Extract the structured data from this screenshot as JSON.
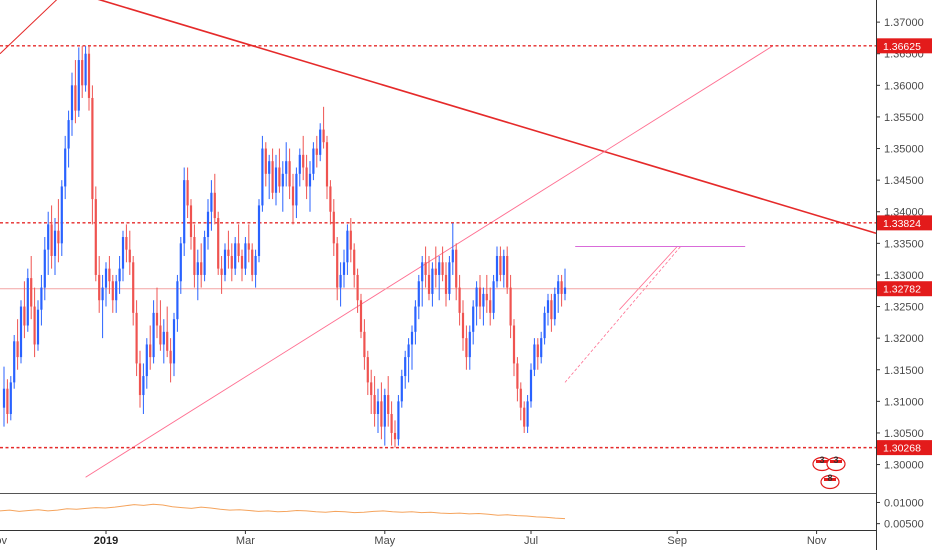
{
  "chart_data": {
    "type": "candlestick",
    "instrument_note": "",
    "colors": {
      "up": "#2962ff",
      "down": "#ef5350",
      "resistance_line": "#e52a2a",
      "trendline": "#e52a2a",
      "channel": "#ff6f91",
      "price_line": "#f4a3a3",
      "oscillator": "#f5a45d",
      "axis_text": "#4a4a4a",
      "badge": "#e31b1b"
    },
    "y_axis": {
      "range": [
        1.2955,
        1.3735
      ],
      "ticks": [
        "1.37000",
        "1.36500",
        "1.36000",
        "1.35500",
        "1.35000",
        "1.34500",
        "1.34000",
        "1.33500",
        "1.33000",
        "1.32500",
        "1.32000",
        "1.31500",
        "1.31000",
        "1.30500",
        "1.30000"
      ]
    },
    "price_levels": [
      {
        "value": 1.36625,
        "label": "1.36625",
        "style": "dashed"
      },
      {
        "value": 1.33824,
        "label": "1.33824",
        "style": "dashed"
      },
      {
        "value": 1.30268,
        "label": "1.30268",
        "style": "dashed"
      },
      {
        "value": 1.32782,
        "label": "1.32782",
        "style": "current"
      }
    ],
    "x_axis": {
      "labels": [
        {
          "label": "Nov",
          "bar": -2,
          "bold": false
        },
        {
          "label": "2019",
          "bar": 30,
          "bold": true
        },
        {
          "label": "Mar",
          "bar": 71,
          "bold": false
        },
        {
          "label": "May",
          "bar": 112,
          "bold": false
        },
        {
          "label": "Jul",
          "bar": 155,
          "bold": false
        },
        {
          "label": "Sep",
          "bar": 198,
          "bold": false
        },
        {
          "label": "Nov",
          "bar": 239,
          "bold": false
        }
      ]
    },
    "candles": [
      [
        1.309,
        1.3155,
        1.306,
        1.312
      ],
      [
        1.312,
        1.3135,
        1.3065,
        1.308
      ],
      [
        1.308,
        1.314,
        1.307,
        1.313
      ],
      [
        1.313,
        1.3205,
        1.312,
        1.3195
      ],
      [
        1.3195,
        1.323,
        1.315,
        1.317
      ],
      [
        1.317,
        1.326,
        1.316,
        1.325
      ],
      [
        1.325,
        1.329,
        1.32,
        1.322
      ],
      [
        1.322,
        1.331,
        1.321,
        1.3295
      ],
      [
        1.3295,
        1.333,
        1.323,
        1.325
      ],
      [
        1.325,
        1.328,
        1.317,
        1.319
      ],
      [
        1.319,
        1.326,
        1.318,
        1.3245
      ],
      [
        1.3245,
        1.33,
        1.322,
        1.328
      ],
      [
        1.328,
        1.336,
        1.326,
        1.334
      ],
      [
        1.334,
        1.34,
        1.33,
        1.338
      ],
      [
        1.338,
        1.341,
        1.331,
        1.333
      ],
      [
        1.333,
        1.339,
        1.33,
        1.337
      ],
      [
        1.337,
        1.342,
        1.332,
        1.335
      ],
      [
        1.335,
        1.345,
        1.333,
        1.344
      ],
      [
        1.344,
        1.352,
        1.342,
        1.35
      ],
      [
        1.35,
        1.356,
        1.347,
        1.3545
      ],
      [
        1.3545,
        1.362,
        1.352,
        1.36
      ],
      [
        1.36,
        1.364,
        1.354,
        1.356
      ],
      [
        1.356,
        1.366,
        1.355,
        1.364
      ],
      [
        1.364,
        1.3662,
        1.358,
        1.36
      ],
      [
        1.36,
        1.3662,
        1.359,
        1.365
      ],
      [
        1.365,
        1.3662,
        1.356,
        1.358
      ],
      [
        1.358,
        1.36,
        1.338,
        1.342
      ],
      [
        1.342,
        1.344,
        1.329,
        1.33
      ],
      [
        1.33,
        1.333,
        1.324,
        1.326
      ],
      [
        1.326,
        1.33,
        1.32,
        1.328
      ],
      [
        1.328,
        1.332,
        1.325,
        1.331
      ],
      [
        1.331,
        1.333,
        1.327,
        1.329
      ],
      [
        1.329,
        1.33,
        1.324,
        1.326
      ],
      [
        1.326,
        1.33,
        1.324,
        1.329
      ],
      [
        1.329,
        1.333,
        1.327,
        1.331
      ],
      [
        1.331,
        1.337,
        1.329,
        1.336
      ],
      [
        1.336,
        1.338,
        1.332,
        1.334
      ],
      [
        1.334,
        1.337,
        1.33,
        1.332
      ],
      [
        1.332,
        1.333,
        1.322,
        1.324
      ],
      [
        1.324,
        1.326,
        1.314,
        1.316
      ],
      [
        1.316,
        1.318,
        1.309,
        1.311
      ],
      [
        1.311,
        1.316,
        1.308,
        1.314
      ],
      [
        1.314,
        1.32,
        1.312,
        1.319
      ],
      [
        1.319,
        1.322,
        1.315,
        1.317
      ],
      [
        1.317,
        1.326,
        1.316,
        1.324
      ],
      [
        1.324,
        1.328,
        1.32,
        1.322
      ],
      [
        1.322,
        1.326,
        1.318,
        1.319
      ],
      [
        1.319,
        1.323,
        1.316,
        1.321
      ],
      [
        1.321,
        1.325,
        1.317,
        1.318
      ],
      [
        1.318,
        1.32,
        1.313,
        1.316
      ],
      [
        1.316,
        1.324,
        1.314,
        1.323
      ],
      [
        1.323,
        1.33,
        1.321,
        1.329
      ],
      [
        1.329,
        1.336,
        1.327,
        1.335
      ],
      [
        1.335,
        1.347,
        1.333,
        1.345
      ],
      [
        1.345,
        1.347,
        1.339,
        1.341
      ],
      [
        1.341,
        1.342,
        1.334,
        1.336
      ],
      [
        1.336,
        1.338,
        1.328,
        1.33
      ],
      [
        1.33,
        1.334,
        1.326,
        1.332
      ],
      [
        1.332,
        1.335,
        1.328,
        1.33
      ],
      [
        1.33,
        1.337,
        1.329,
        1.336
      ],
      [
        1.336,
        1.342,
        1.334,
        1.34
      ],
      [
        1.34,
        1.345,
        1.337,
        1.343
      ],
      [
        1.343,
        1.346,
        1.338,
        1.339
      ],
      [
        1.339,
        1.34,
        1.33,
        1.331
      ],
      [
        1.331,
        1.333,
        1.327,
        1.33
      ],
      [
        1.33,
        1.335,
        1.329,
        1.334
      ],
      [
        1.334,
        1.337,
        1.331,
        1.333
      ],
      [
        1.333,
        1.335,
        1.329,
        1.331
      ],
      [
        1.331,
        1.336,
        1.33,
        1.335
      ],
      [
        1.335,
        1.338,
        1.332,
        1.333
      ],
      [
        1.333,
        1.334,
        1.329,
        1.331
      ],
      [
        1.331,
        1.336,
        1.33,
        1.335
      ],
      [
        1.335,
        1.338,
        1.332,
        1.334
      ],
      [
        1.334,
        1.335,
        1.329,
        1.33
      ],
      [
        1.33,
        1.334,
        1.328,
        1.333
      ],
      [
        1.333,
        1.342,
        1.332,
        1.341
      ],
      [
        1.341,
        1.352,
        1.34,
        1.35
      ],
      [
        1.35,
        1.351,
        1.344,
        1.346
      ],
      [
        1.346,
        1.349,
        1.342,
        1.348
      ],
      [
        1.348,
        1.35,
        1.342,
        1.343
      ],
      [
        1.343,
        1.349,
        1.341,
        1.347
      ],
      [
        1.347,
        1.35,
        1.343,
        1.344
      ],
      [
        1.344,
        1.348,
        1.34,
        1.346
      ],
      [
        1.346,
        1.351,
        1.344,
        1.348
      ],
      [
        1.348,
        1.35,
        1.342,
        1.344
      ],
      [
        1.344,
        1.346,
        1.338,
        1.341
      ],
      [
        1.341,
        1.347,
        1.339,
        1.346
      ],
      [
        1.346,
        1.35,
        1.344,
        1.349
      ],
      [
        1.349,
        1.352,
        1.345,
        1.347
      ],
      [
        1.347,
        1.349,
        1.342,
        1.344
      ],
      [
        1.344,
        1.348,
        1.34,
        1.346
      ],
      [
        1.346,
        1.351,
        1.345,
        1.35
      ],
      [
        1.35,
        1.352,
        1.347,
        1.349
      ],
      [
        1.349,
        1.354,
        1.348,
        1.353
      ],
      [
        1.353,
        1.3566,
        1.35,
        1.351
      ],
      [
        1.351,
        1.352,
        1.342,
        1.344
      ],
      [
        1.344,
        1.345,
        1.338,
        1.34
      ],
      [
        1.34,
        1.342,
        1.333,
        1.335
      ],
      [
        1.335,
        1.336,
        1.326,
        1.328
      ],
      [
        1.328,
        1.332,
        1.325,
        1.33
      ],
      [
        1.33,
        1.334,
        1.328,
        1.332
      ],
      [
        1.332,
        1.338,
        1.33,
        1.337
      ],
      [
        1.337,
        1.339,
        1.332,
        1.334
      ],
      [
        1.334,
        1.335,
        1.328,
        1.33
      ],
      [
        1.33,
        1.331,
        1.324,
        1.326
      ],
      [
        1.326,
        1.327,
        1.32,
        1.321
      ],
      [
        1.321,
        1.323,
        1.315,
        1.317
      ],
      [
        1.317,
        1.318,
        1.311,
        1.313
      ],
      [
        1.313,
        1.315,
        1.308,
        1.311
      ],
      [
        1.311,
        1.314,
        1.306,
        1.308
      ],
      [
        1.308,
        1.312,
        1.305,
        1.31
      ],
      [
        1.31,
        1.313,
        1.304,
        1.306
      ],
      [
        1.306,
        1.312,
        1.303,
        1.311
      ],
      [
        1.311,
        1.314,
        1.306,
        1.308
      ],
      [
        1.308,
        1.31,
        1.303,
        1.305
      ],
      [
        1.305,
        1.307,
        1.3027,
        1.304
      ],
      [
        1.304,
        1.311,
        1.303,
        1.31
      ],
      [
        1.31,
        1.315,
        1.309,
        1.314
      ],
      [
        1.314,
        1.318,
        1.312,
        1.317
      ],
      [
        1.317,
        1.32,
        1.313,
        1.319
      ],
      [
        1.319,
        1.322,
        1.315,
        1.321
      ],
      [
        1.321,
        1.326,
        1.319,
        1.325
      ],
      [
        1.325,
        1.33,
        1.323,
        1.329
      ],
      [
        1.329,
        1.333,
        1.325,
        1.332
      ],
      [
        1.332,
        1.3345,
        1.328,
        1.33
      ],
      [
        1.33,
        1.333,
        1.326,
        1.327
      ],
      [
        1.327,
        1.332,
        1.325,
        1.331
      ],
      [
        1.331,
        1.3345,
        1.328,
        1.33
      ],
      [
        1.33,
        1.333,
        1.326,
        1.332
      ],
      [
        1.332,
        1.3345,
        1.329,
        1.33
      ],
      [
        1.33,
        1.332,
        1.325,
        1.327
      ],
      [
        1.327,
        1.333,
        1.326,
        1.332
      ],
      [
        1.332,
        1.3382,
        1.33,
        1.334
      ],
      [
        1.334,
        1.335,
        1.326,
        1.328
      ],
      [
        1.328,
        1.33,
        1.322,
        1.324
      ],
      [
        1.324,
        1.326,
        1.318,
        1.32
      ],
      [
        1.32,
        1.322,
        1.315,
        1.317
      ],
      [
        1.317,
        1.322,
        1.315,
        1.321
      ],
      [
        1.321,
        1.326,
        1.319,
        1.325
      ],
      [
        1.325,
        1.329,
        1.322,
        1.328
      ],
      [
        1.328,
        1.33,
        1.323,
        1.325
      ],
      [
        1.325,
        1.328,
        1.322,
        1.327
      ],
      [
        1.327,
        1.33,
        1.324,
        1.326
      ],
      [
        1.326,
        1.328,
        1.322,
        1.324
      ],
      [
        1.324,
        1.33,
        1.323,
        1.329
      ],
      [
        1.329,
        1.3345,
        1.328,
        1.333
      ],
      [
        1.333,
        1.3345,
        1.329,
        1.33
      ],
      [
        1.33,
        1.334,
        1.328,
        1.333
      ],
      [
        1.333,
        1.3345,
        1.327,
        1.328
      ],
      [
        1.328,
        1.33,
        1.32,
        1.322
      ],
      [
        1.322,
        1.323,
        1.314,
        1.316
      ],
      [
        1.316,
        1.317,
        1.31,
        1.312
      ],
      [
        1.312,
        1.313,
        1.307,
        1.309
      ],
      [
        1.309,
        1.31,
        1.305,
        1.306
      ],
      [
        1.306,
        1.311,
        1.305,
        1.31
      ],
      [
        1.31,
        1.316,
        1.309,
        1.315
      ],
      [
        1.315,
        1.32,
        1.314,
        1.319
      ],
      [
        1.319,
        1.32,
        1.315,
        1.317
      ],
      [
        1.317,
        1.321,
        1.316,
        1.32
      ],
      [
        1.32,
        1.325,
        1.319,
        1.324
      ],
      [
        1.324,
        1.327,
        1.322,
        1.326
      ],
      [
        1.326,
        1.327,
        1.321,
        1.323
      ],
      [
        1.323,
        1.328,
        1.322,
        1.327
      ],
      [
        1.327,
        1.33,
        1.324,
        1.329
      ],
      [
        1.329,
        1.33,
        1.325,
        1.327
      ],
      [
        1.327,
        1.331,
        1.326,
        1.328
      ]
    ],
    "oscillator": {
      "range": [
        0.0035,
        0.012
      ],
      "ticks": [
        "0.01000",
        "0.00500"
      ],
      "values": [
        0.008,
        0.0082,
        0.0079,
        0.0081,
        0.0083,
        0.008,
        0.0082,
        0.0085,
        0.0084,
        0.0086,
        0.0088,
        0.0087,
        0.0089,
        0.0092,
        0.0095,
        0.0093,
        0.0096,
        0.0094,
        0.009,
        0.0088,
        0.0086,
        0.0089,
        0.0087,
        0.0084,
        0.0082,
        0.0083,
        0.0081,
        0.0079,
        0.008,
        0.0078,
        0.0079,
        0.0081,
        0.008,
        0.0078,
        0.0077,
        0.0079,
        0.0078,
        0.0076,
        0.0077,
        0.0079,
        0.008,
        0.0078,
        0.0077,
        0.0078,
        0.0076,
        0.0077,
        0.0075,
        0.0074,
        0.0075,
        0.0073,
        0.0074,
        0.0072,
        0.007,
        0.0071,
        0.0069,
        0.0068,
        0.0066,
        0.0065,
        0.0063,
        0.0062
      ]
    },
    "event_badges": [
      {
        "label": "3"
      },
      {
        "label": "3"
      },
      {
        "label": "8"
      }
    ]
  }
}
